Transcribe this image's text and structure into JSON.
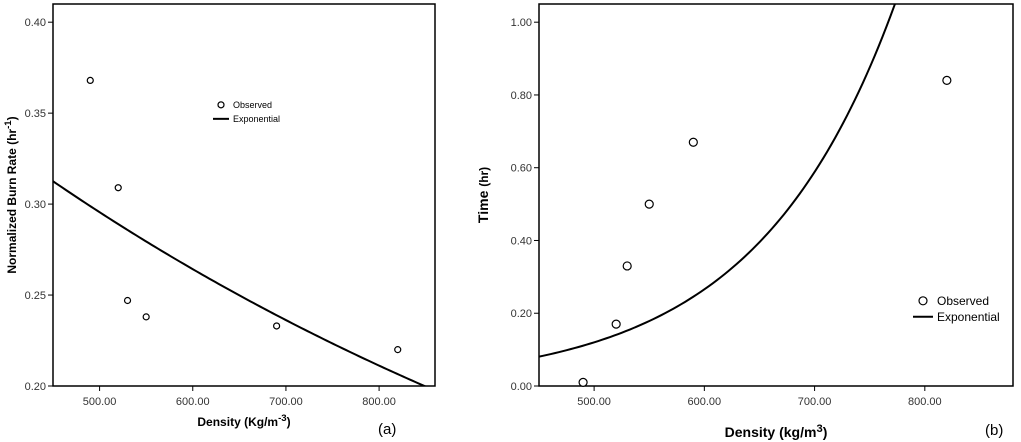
{
  "colors": {
    "line": "#000000",
    "marker": "#000000",
    "background": "#ffffff"
  },
  "chart_data": [
    {
      "type": "scatter",
      "panel_label": "(a)",
      "xlabel_main": "Density (Kg/m",
      "xlabel_sup": "-3",
      "xlabel_end": ")",
      "ylabel_main": "Normalized Burn Rate (hr",
      "ylabel_sup": "-1",
      "ylabel_end": ")",
      "xlim": [
        450,
        860
      ],
      "ylim": [
        0.2,
        0.41
      ],
      "xticks": [
        500,
        600,
        700,
        800
      ],
      "xtick_labels": [
        "500.00",
        "600.00",
        "700.00",
        "800.00"
      ],
      "yticks": [
        0.2,
        0.25,
        0.3,
        0.35,
        0.4
      ],
      "ytick_labels": [
        "0.20",
        "0.25",
        "0.30",
        "0.35",
        "0.40"
      ],
      "grid": false,
      "legend_position": "top-center",
      "series": [
        {
          "name": "Observed",
          "kind": "points",
          "x": [
            490,
            520,
            530,
            550,
            690,
            820
          ],
          "y": [
            0.368,
            0.309,
            0.247,
            0.238,
            0.233,
            0.22
          ]
        },
        {
          "name": "Exponential",
          "kind": "curve",
          "model": "y = a*exp(b*x)",
          "a": 0.5174,
          "b": -0.00112,
          "x_range": [
            450,
            860
          ]
        }
      ]
    },
    {
      "type": "scatter",
      "panel_label": "(b)",
      "xlabel_main": "Density (kg/m",
      "xlabel_sup": "3",
      "xlabel_end": ")",
      "ylabel_main": "Time",
      "ylabel_unit": "(hr)",
      "xlim": [
        450,
        880
      ],
      "ylim": [
        0,
        1.05
      ],
      "xticks": [
        500,
        600,
        700,
        800
      ],
      "xtick_labels": [
        "500.00",
        "600.00",
        "700.00",
        "800.00"
      ],
      "yticks": [
        0,
        0.2,
        0.4,
        0.6,
        0.8,
        1.0
      ],
      "ytick_labels": [
        "0.00",
        "0.20",
        "0.40",
        "0.60",
        "0.80",
        "1.00"
      ],
      "grid": false,
      "legend_position": "bottom-right",
      "series": [
        {
          "name": "Observed",
          "kind": "points",
          "x": [
            490,
            520,
            530,
            550,
            590,
            820
          ],
          "y": [
            0.01,
            0.17,
            0.33,
            0.5,
            0.67,
            0.84
          ]
        },
        {
          "name": "Exponential",
          "kind": "curve",
          "model": "y = a*exp(b*x)",
          "a": 0.002256,
          "b": 0.007948,
          "x_range": [
            450,
            880
          ]
        }
      ]
    }
  ]
}
